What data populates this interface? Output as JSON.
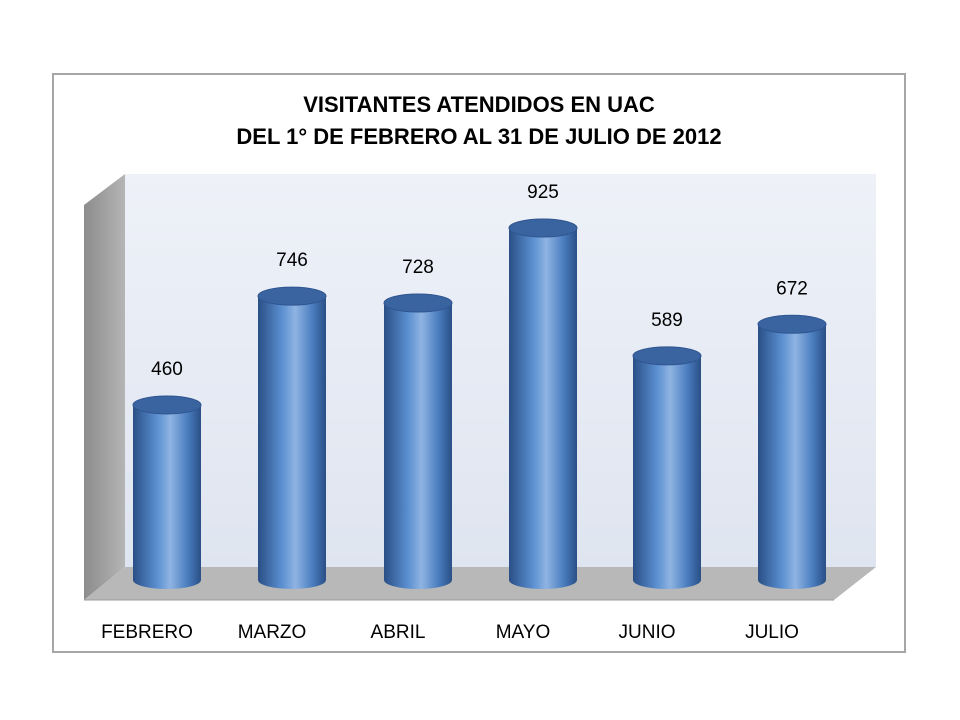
{
  "chart_data": {
    "type": "bar",
    "title_lines": [
      "VISITANTES ATENDIDOS EN UAC",
      "DEL 1° DE FEBRERO AL 31 DE JULIO DE 2012"
    ],
    "categories": [
      "FEBRERO",
      "MARZO",
      "ABRIL",
      "MAYO",
      "JUNIO",
      "JULIO"
    ],
    "values": [
      460,
      746,
      728,
      925,
      589,
      672
    ],
    "data_labels": [
      "460",
      "746",
      "728",
      "925",
      "589",
      "672"
    ],
    "xlabel": "",
    "ylabel": "",
    "ylim": [
      0,
      1000
    ],
    "grid": false,
    "legend": "none",
    "style": "3d-cylinder",
    "colors": {
      "bar": "#4f81bd",
      "bar_dark": "#2a4f86",
      "bar_light": "#8fb4e3",
      "bar_top": "#3a64a0",
      "wall": "#e8ecf4",
      "side_wall": "#a6a6a6",
      "floor": "#b8b8b8"
    }
  }
}
